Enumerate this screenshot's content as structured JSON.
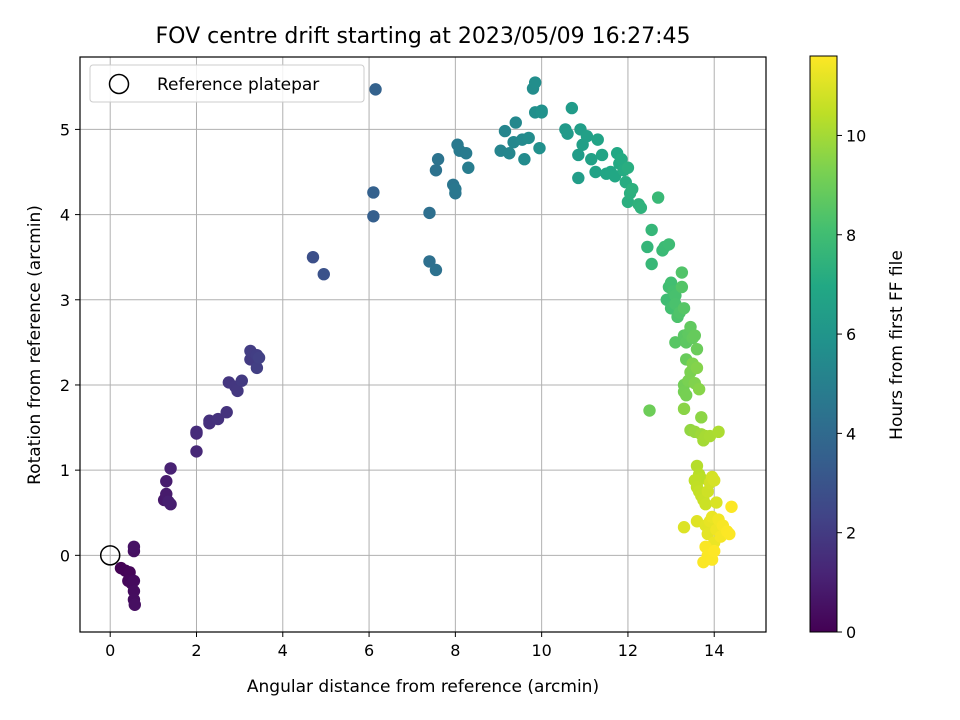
{
  "chart_data": {
    "type": "scatter",
    "title": "FOV centre drift starting at 2023/05/09 16:27:45",
    "xlabel": "Angular distance from reference (arcmin)",
    "ylabel": "Rotation from reference (arcmin)",
    "xlim": [
      -0.7,
      15.2
    ],
    "ylim": [
      -0.9,
      5.85
    ],
    "xticks": [
      0,
      2,
      4,
      6,
      8,
      10,
      12,
      14
    ],
    "yticks": [
      0,
      1,
      2,
      3,
      4,
      5
    ],
    "grid": true,
    "legend": {
      "placement": "top-left",
      "entries": [
        {
          "label": "Reference platepar",
          "marker": "open-circle"
        }
      ]
    },
    "reference_point": {
      "x": 0,
      "y": 0
    },
    "colorbar": {
      "label": "Hours from first FF file",
      "colormap": "viridis",
      "range": [
        0,
        11.6
      ],
      "ticks": [
        0,
        2,
        4,
        6,
        8,
        10
      ]
    },
    "points_xyh": [
      [
        0.25,
        -0.15,
        0.05
      ],
      [
        0.35,
        -0.18,
        0.1
      ],
      [
        0.45,
        -0.2,
        0.15
      ],
      [
        0.42,
        -0.3,
        0.2
      ],
      [
        0.5,
        -0.33,
        0.25
      ],
      [
        0.55,
        -0.3,
        0.3
      ],
      [
        0.55,
        -0.42,
        0.35
      ],
      [
        0.55,
        -0.52,
        0.4
      ],
      [
        0.57,
        -0.58,
        0.45
      ],
      [
        0.55,
        0.05,
        0.5
      ],
      [
        0.55,
        0.1,
        0.55
      ],
      [
        1.25,
        0.65,
        0.8
      ],
      [
        1.3,
        0.72,
        0.85
      ],
      [
        1.3,
        0.87,
        0.9
      ],
      [
        1.4,
        0.6,
        0.95
      ],
      [
        1.35,
        0.63,
        1.0
      ],
      [
        1.4,
        1.02,
        1.1
      ],
      [
        2.0,
        1.22,
        1.3
      ],
      [
        2.0,
        1.43,
        1.4
      ],
      [
        2.0,
        1.45,
        1.45
      ],
      [
        2.3,
        1.55,
        1.55
      ],
      [
        2.3,
        1.58,
        1.6
      ],
      [
        2.5,
        1.6,
        1.65
      ],
      [
        2.7,
        1.68,
        1.7
      ],
      [
        2.75,
        2.03,
        1.8
      ],
      [
        2.9,
        1.98,
        1.85
      ],
      [
        2.95,
        1.93,
        1.9
      ],
      [
        3.05,
        2.05,
        1.95
      ],
      [
        3.25,
        2.3,
        2.0
      ],
      [
        3.25,
        2.4,
        2.05
      ],
      [
        3.4,
        2.35,
        2.1
      ],
      [
        3.4,
        2.2,
        2.15
      ],
      [
        3.45,
        2.32,
        2.2
      ],
      [
        4.7,
        3.5,
        2.8
      ],
      [
        4.95,
        3.3,
        2.9
      ],
      [
        6.1,
        3.98,
        3.5
      ],
      [
        6.1,
        4.26,
        3.55
      ],
      [
        6.15,
        5.47,
        3.6
      ],
      [
        7.4,
        4.02,
        4.2
      ],
      [
        7.4,
        3.45,
        4.25
      ],
      [
        7.55,
        3.35,
        4.3
      ],
      [
        7.55,
        4.52,
        4.35
      ],
      [
        7.6,
        4.65,
        4.4
      ],
      [
        7.95,
        4.35,
        4.5
      ],
      [
        8.0,
        4.25,
        4.55
      ],
      [
        8.0,
        4.3,
        4.6
      ],
      [
        8.05,
        4.82,
        4.7
      ],
      [
        8.1,
        4.75,
        4.75
      ],
      [
        8.25,
        4.72,
        4.8
      ],
      [
        8.3,
        4.55,
        4.85
      ],
      [
        9.05,
        4.75,
        5.2
      ],
      [
        9.15,
        4.98,
        5.25
      ],
      [
        9.25,
        4.72,
        5.3
      ],
      [
        9.35,
        4.85,
        5.35
      ],
      [
        9.4,
        5.08,
        5.4
      ],
      [
        9.55,
        4.88,
        5.45
      ],
      [
        9.6,
        4.65,
        5.5
      ],
      [
        9.7,
        4.9,
        5.55
      ],
      [
        9.8,
        5.48,
        5.6
      ],
      [
        9.85,
        5.55,
        5.65
      ],
      [
        9.85,
        5.2,
        5.7
      ],
      [
        9.95,
        4.78,
        5.75
      ],
      [
        10.0,
        5.22,
        5.8
      ],
      [
        10.0,
        5.2,
        5.85
      ],
      [
        10.55,
        5.0,
        6.2
      ],
      [
        10.6,
        4.95,
        6.25
      ],
      [
        10.7,
        5.25,
        6.3
      ],
      [
        10.85,
        4.7,
        6.35
      ],
      [
        10.85,
        4.43,
        6.4
      ],
      [
        10.9,
        5.0,
        6.45
      ],
      [
        10.95,
        4.82,
        6.5
      ],
      [
        11.05,
        4.92,
        6.55
      ],
      [
        11.15,
        4.65,
        6.6
      ],
      [
        11.25,
        4.5,
        6.65
      ],
      [
        11.3,
        4.88,
        6.7
      ],
      [
        11.4,
        4.7,
        6.75
      ],
      [
        11.5,
        4.48,
        6.8
      ],
      [
        11.6,
        4.5,
        6.85
      ],
      [
        11.7,
        4.45,
        6.9
      ],
      [
        11.75,
        4.72,
        6.95
      ],
      [
        11.8,
        4.6,
        7.0
      ],
      [
        11.85,
        4.65,
        7.05
      ],
      [
        11.9,
        4.52,
        7.1
      ],
      [
        11.95,
        4.38,
        7.15
      ],
      [
        12.0,
        4.55,
        7.2
      ],
      [
        12.0,
        4.15,
        7.25
      ],
      [
        12.05,
        4.25,
        7.3
      ],
      [
        12.1,
        4.3,
        7.35
      ],
      [
        12.25,
        4.12,
        7.4
      ],
      [
        12.3,
        4.08,
        7.45
      ],
      [
        12.45,
        3.62,
        7.6
      ],
      [
        12.55,
        3.82,
        7.65
      ],
      [
        12.55,
        3.42,
        7.7
      ],
      [
        12.7,
        4.2,
        7.75
      ],
      [
        12.8,
        3.58,
        7.8
      ],
      [
        12.85,
        3.62,
        7.85
      ],
      [
        12.95,
        3.65,
        7.9
      ],
      [
        12.9,
        3.0,
        7.95
      ],
      [
        12.95,
        3.15,
        8.0
      ],
      [
        13.0,
        3.2,
        8.05
      ],
      [
        13.0,
        2.9,
        8.1
      ],
      [
        13.05,
        3.1,
        8.15
      ],
      [
        13.1,
        3.05,
        8.2
      ],
      [
        13.1,
        2.95,
        8.25
      ],
      [
        13.15,
        2.8,
        8.3
      ],
      [
        13.2,
        2.85,
        8.35
      ],
      [
        13.25,
        3.32,
        8.4
      ],
      [
        13.25,
        3.15,
        8.45
      ],
      [
        13.3,
        2.9,
        8.5
      ],
      [
        13.1,
        2.5,
        8.55
      ],
      [
        13.3,
        2.58,
        8.6
      ],
      [
        13.35,
        2.5,
        8.65
      ],
      [
        13.4,
        2.6,
        8.7
      ],
      [
        13.45,
        2.68,
        8.75
      ],
      [
        13.5,
        2.55,
        8.8
      ],
      [
        13.55,
        2.58,
        8.85
      ],
      [
        13.35,
        2.3,
        8.9
      ],
      [
        13.6,
        2.42,
        8.95
      ],
      [
        12.5,
        1.7,
        9.0
      ],
      [
        13.3,
        2.0,
        9.1
      ],
      [
        13.3,
        1.92,
        9.15
      ],
      [
        13.35,
        1.88,
        9.2
      ],
      [
        13.4,
        2.05,
        9.25
      ],
      [
        13.45,
        2.15,
        9.3
      ],
      [
        13.5,
        2.25,
        9.35
      ],
      [
        13.55,
        2.02,
        9.4
      ],
      [
        13.6,
        2.2,
        9.45
      ],
      [
        13.65,
        1.95,
        9.5
      ],
      [
        13.3,
        1.72,
        9.55
      ],
      [
        13.7,
        1.62,
        9.6
      ],
      [
        13.45,
        1.47,
        9.7
      ],
      [
        13.55,
        1.45,
        9.8
      ],
      [
        13.7,
        1.42,
        9.9
      ],
      [
        13.75,
        1.35,
        10.0
      ],
      [
        13.8,
        1.4,
        10.05
      ],
      [
        13.9,
        1.4,
        10.1
      ],
      [
        14.1,
        1.45,
        10.15
      ],
      [
        13.6,
        1.05,
        10.3
      ],
      [
        13.65,
        0.95,
        10.35
      ],
      [
        13.7,
        0.9,
        10.4
      ],
      [
        13.55,
        0.88,
        10.45
      ],
      [
        13.6,
        0.8,
        10.5
      ],
      [
        13.65,
        0.75,
        10.55
      ],
      [
        13.7,
        0.7,
        10.6
      ],
      [
        13.75,
        0.65,
        10.65
      ],
      [
        13.8,
        0.6,
        10.7
      ],
      [
        13.85,
        0.75,
        10.75
      ],
      [
        13.9,
        0.85,
        10.8
      ],
      [
        13.95,
        0.92,
        10.85
      ],
      [
        14.0,
        0.88,
        10.9
      ],
      [
        14.05,
        0.62,
        10.95
      ],
      [
        13.3,
        0.33,
        11.0
      ],
      [
        13.6,
        0.4,
        11.05
      ],
      [
        13.8,
        0.35,
        11.1
      ],
      [
        13.85,
        0.25,
        11.15
      ],
      [
        13.9,
        0.4,
        11.2
      ],
      [
        13.95,
        0.45,
        11.25
      ],
      [
        14.0,
        0.15,
        11.3
      ],
      [
        14.05,
        0.3,
        11.35
      ],
      [
        14.1,
        0.42,
        11.4
      ],
      [
        14.15,
        0.22,
        11.45
      ],
      [
        14.2,
        0.35,
        11.5
      ],
      [
        13.8,
        0.1,
        11.52
      ],
      [
        13.85,
        0.0,
        11.54
      ],
      [
        13.75,
        -0.08,
        11.55
      ],
      [
        13.95,
        -0.05,
        11.56
      ],
      [
        14.3,
        0.28,
        11.57
      ],
      [
        14.35,
        0.25,
        11.58
      ],
      [
        14.4,
        0.57,
        11.59
      ],
      [
        14.0,
        0.05,
        11.6
      ]
    ]
  }
}
